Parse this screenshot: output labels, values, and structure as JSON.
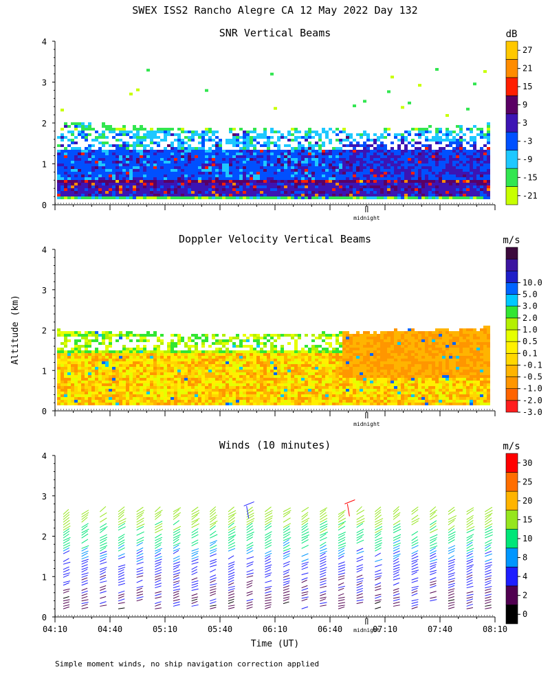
{
  "title": "SWEX ISS2 Rancho Alegre CA  12 May 2022 Day 132",
  "shared_ylabel": "Altitude (km)",
  "shared_xlabel": "Time (UT)",
  "footnote": "Simple moment winds, no ship navigation correction applied",
  "midnight_label": "midnight",
  "colors": {
    "snr_scale": [
      "#c8ff00",
      "#32e650",
      "#1ec8ff",
      "#0050ff",
      "#3c14b4",
      "#5a0064",
      "#ff1e00",
      "#ff8c00",
      "#ffc800"
    ],
    "doppler_scale": [
      "#ff1e1e",
      "#ff6400",
      "#ff9600",
      "#ffb400",
      "#ffd700",
      "#fff000",
      "#e6ff00",
      "#b4f000",
      "#32e632",
      "#00c8ff",
      "#0064ff",
      "#1e1ec8",
      "#3c14a0",
      "#3c0a3c"
    ],
    "wind_scale": [
      "#000000",
      "#500050",
      "#1e1eff",
      "#0096ff",
      "#00e678",
      "#96e61e",
      "#ffb400",
      "#ff6e00",
      "#ff0000"
    ]
  },
  "chart_data": [
    {
      "type": "heatmap",
      "title": "SNR Vertical Beams",
      "ylabel": "Altitude (km)",
      "ylim": [
        0,
        4
      ],
      "yticks": [
        "0",
        "1",
        "2",
        "3",
        "4"
      ],
      "x_start": "04:10",
      "x_end": "08:10",
      "midnight_time": "07:00",
      "colorbar": {
        "unit": "dB",
        "labels": [
          "-21",
          "-15",
          "-9",
          "-3",
          "3",
          "9",
          "15",
          "21",
          "27"
        ]
      },
      "field_summary": [
        {
          "alt_km": [
            0.2,
            0.5
          ],
          "snr_db": 3
        },
        {
          "alt_km": [
            0.45,
            0.55
          ],
          "snr_db": 9
        },
        {
          "alt_km": [
            0.5,
            1.3
          ],
          "snr_db": -3
        },
        {
          "alt_km": [
            1.3,
            1.8
          ],
          "snr_db": -9
        },
        {
          "alt_km": [
            1.8,
            2.05
          ],
          "snr_db": -15
        }
      ]
    },
    {
      "type": "heatmap",
      "title": "Doppler Velocity Vertical Beams",
      "ylabel": "Altitude (km)",
      "ylim": [
        0,
        4
      ],
      "yticks": [
        "0",
        "1",
        "2",
        "3",
        "4"
      ],
      "x_start": "04:10",
      "x_end": "08:10",
      "midnight_time": "07:00",
      "colorbar": {
        "unit": "m/s",
        "labels": [
          "-3.0",
          "-2.0",
          "-1.0",
          "-0.5",
          "-0.1",
          "0.1",
          "0.5",
          "1.0",
          "2.0",
          "3.0",
          "5.0",
          "10.0"
        ]
      },
      "field_summary": [
        {
          "alt_km": [
            0.15,
            1.4
          ],
          "velocity_ms": -0.3
        },
        {
          "alt_km": [
            1.4,
            2.0
          ],
          "velocity_ms": 0.3
        }
      ]
    },
    {
      "type": "scatter",
      "title": "Winds (10 minutes)",
      "ylabel": "Altitude (km)",
      "xlabel": "Time (UT)",
      "ylim": [
        0,
        4
      ],
      "yticks": [
        "0",
        "1",
        "2",
        "3",
        "4"
      ],
      "x_ticks": [
        "04:10",
        "04:40",
        "05:10",
        "05:40",
        "06:10",
        "06:40",
        "07:10",
        "07:40",
        "08:10"
      ],
      "midnight_time": "07:00",
      "colorbar": {
        "unit": "m/s",
        "labels": [
          "0",
          "2",
          "4",
          "8",
          "10",
          "15",
          "20",
          "25",
          "30"
        ]
      },
      "profile_times": [
        "04:10",
        "04:20",
        "04:30",
        "04:40",
        "04:50",
        "05:00",
        "05:10",
        "05:20",
        "05:30",
        "05:40",
        "05:50",
        "06:00",
        "06:10",
        "06:20",
        "06:30",
        "06:40",
        "06:50",
        "07:00",
        "07:10",
        "07:20",
        "07:30",
        "07:40",
        "07:50",
        "08:00"
      ],
      "speed_by_altitude": [
        {
          "alt_km": 0.3,
          "speed_ms": 3
        },
        {
          "alt_km": 0.8,
          "speed_ms": 4
        },
        {
          "alt_km": 1.2,
          "speed_ms": 6
        },
        {
          "alt_km": 1.6,
          "speed_ms": 9
        },
        {
          "alt_km": 2.0,
          "speed_ms": 13
        },
        {
          "alt_km": 2.4,
          "speed_ms": 17
        }
      ],
      "notable": [
        {
          "time": "05:50",
          "alt_km": 2.75,
          "speed_ms": 5
        },
        {
          "time": "06:45",
          "alt_km": 2.8,
          "speed_ms": 30
        }
      ]
    }
  ]
}
